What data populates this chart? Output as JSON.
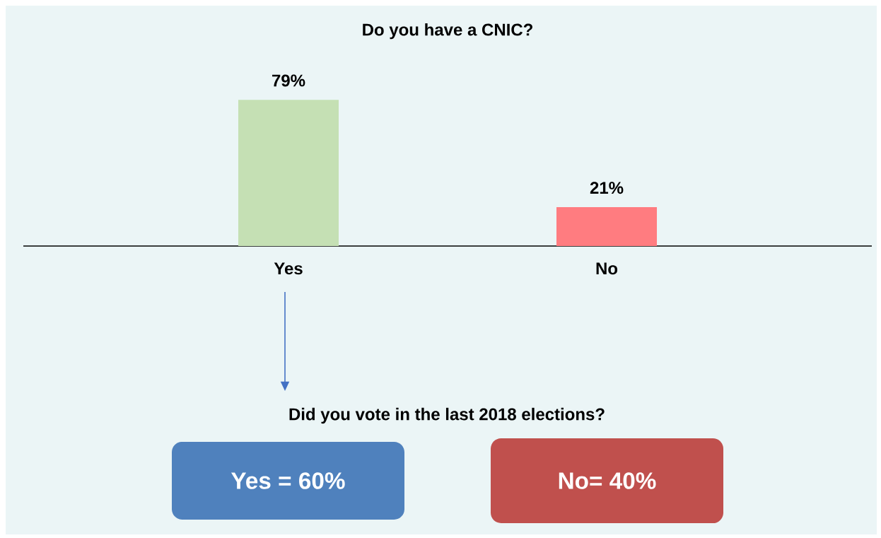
{
  "chart_data": [
    {
      "type": "bar",
      "title": "Do you have a CNIC?",
      "categories": [
        "Yes",
        "No"
      ],
      "values": [
        79,
        21
      ],
      "colors": [
        "#c5e0b4",
        "#ff7c80"
      ],
      "value_labels": [
        "79%",
        "21%"
      ]
    },
    {
      "type": "other",
      "title": "Did you vote in the last 2018 elections?",
      "annotations": [
        "Yes = 60%",
        "No= 40%"
      ],
      "colors": [
        "#4f81bd",
        "#c0504d"
      ]
    }
  ]
}
